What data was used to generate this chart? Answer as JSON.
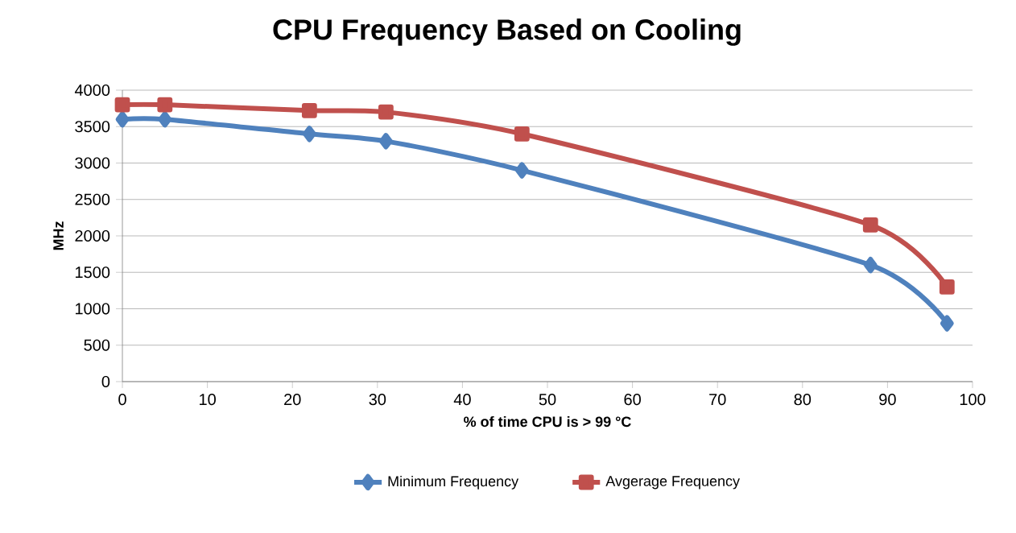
{
  "chart_data": {
    "type": "line",
    "title": "CPU Frequency Based on Cooling",
    "xlabel": "% of time CPU is  > 99 °C",
    "ylabel": "MHz",
    "x": [
      0,
      5,
      22,
      31,
      47,
      88,
      97
    ],
    "series": [
      {
        "name": "Minimum Frequency",
        "color": "#4f81bd",
        "marker": "diamond",
        "values": [
          3600,
          3600,
          3400,
          3300,
          2900,
          1600,
          800
        ]
      },
      {
        "name": "Avgerage Frequency",
        "color": "#c0504d",
        "marker": "square",
        "values": [
          3800,
          3800,
          3720,
          3700,
          3400,
          2150,
          1300
        ]
      }
    ],
    "xlim": [
      0,
      100
    ],
    "xticks": [
      0,
      10,
      20,
      30,
      40,
      50,
      60,
      70,
      80,
      90,
      100
    ],
    "ylim": [
      0,
      4000
    ],
    "yticks": [
      0,
      500,
      1000,
      1500,
      2000,
      2500,
      3000,
      3500,
      4000
    ],
    "grid": "y",
    "legend": "bottom",
    "line_style": "solid"
  }
}
